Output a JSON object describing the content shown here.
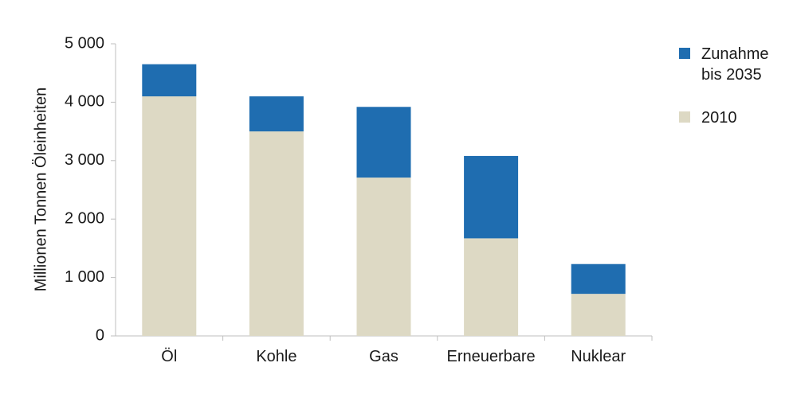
{
  "chart_data": {
    "type": "bar",
    "stacked": true,
    "categories": [
      "Öl",
      "Kohle",
      "Gas",
      "Erneuerbare",
      "Nuklear"
    ],
    "series": [
      {
        "name": "2010",
        "color": "#ddd9c4",
        "values": [
          4100,
          3500,
          2710,
          1670,
          720
        ]
      },
      {
        "name": "Zunahme bis 2035",
        "color": "#1f6db0",
        "values": [
          550,
          600,
          1210,
          1410,
          510
        ]
      }
    ],
    "title": "",
    "xlabel": "",
    "ylabel": "Millionen Tonnen Öleinheiten",
    "ylim": [
      0,
      5000
    ],
    "yticks": [
      0,
      1000,
      2000,
      3000,
      4000,
      5000
    ],
    "ytick_labels": [
      "0",
      "1 000",
      "2 000",
      "3 000",
      "4 000",
      "5 000"
    ],
    "grid": false,
    "legend": {
      "placement": "right",
      "entries": [
        {
          "lines": [
            "Zunahme",
            "bis 2035"
          ],
          "color": "#1f6db0"
        },
        {
          "lines": [
            "2010"
          ],
          "color": "#ddd9c4"
        }
      ]
    }
  }
}
